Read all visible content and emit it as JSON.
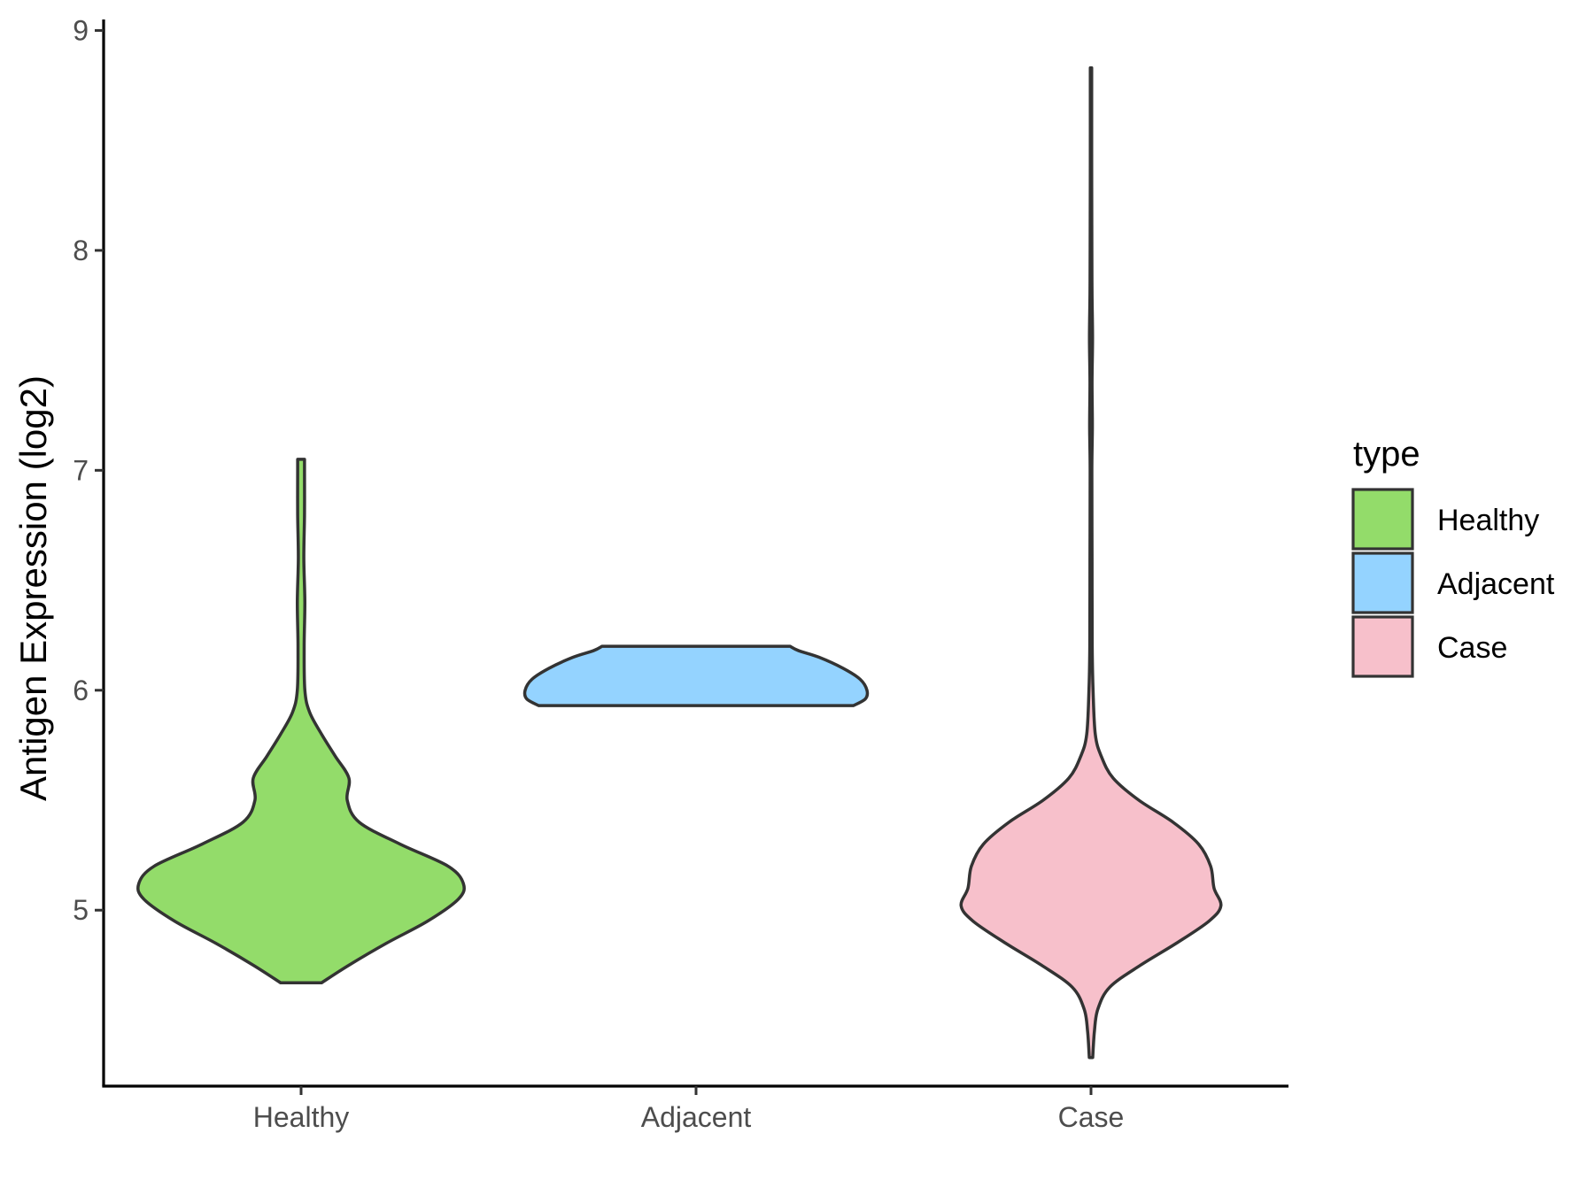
{
  "chart_data": {
    "type": "violin",
    "title": "",
    "xlabel": "",
    "ylabel": "Antigen Expression (log2)",
    "categories": [
      "Healthy",
      "Adjacent",
      "Case"
    ],
    "ylim": [
      4.2,
      9.05
    ],
    "yticks": [
      5,
      6,
      7,
      8,
      9
    ],
    "grid": false,
    "legend": {
      "title": "type",
      "position": "right",
      "entries": [
        "Healthy",
        "Adjacent",
        "Case"
      ]
    },
    "colors": {
      "Healthy": "#93dc6a",
      "Adjacent": "#94d3ff",
      "Case": "#f7c0cb",
      "outline": "#333333",
      "axis": "#000000"
    },
    "series": [
      {
        "name": "Healthy",
        "min": 4.67,
        "max": 7.05,
        "density": [
          [
            4.67,
            0.12
          ],
          [
            4.75,
            0.28
          ],
          [
            4.85,
            0.5
          ],
          [
            4.95,
            0.74
          ],
          [
            5.05,
            0.92
          ],
          [
            5.12,
            0.95
          ],
          [
            5.2,
            0.86
          ],
          [
            5.3,
            0.58
          ],
          [
            5.4,
            0.34
          ],
          [
            5.5,
            0.27
          ],
          [
            5.6,
            0.28
          ],
          [
            5.7,
            0.2
          ],
          [
            5.8,
            0.12
          ],
          [
            5.9,
            0.05
          ],
          [
            6.0,
            0.022
          ],
          [
            6.2,
            0.018
          ],
          [
            6.4,
            0.022
          ],
          [
            6.6,
            0.016
          ],
          [
            6.8,
            0.02
          ],
          [
            7.0,
            0.02
          ],
          [
            7.05,
            0.02
          ]
        ]
      },
      {
        "name": "Adjacent",
        "min": 5.93,
        "max": 6.2,
        "density": [
          [
            5.93,
            0.92
          ],
          [
            5.96,
            0.99
          ],
          [
            6.0,
            1.0
          ],
          [
            6.05,
            0.96
          ],
          [
            6.1,
            0.86
          ],
          [
            6.15,
            0.72
          ],
          [
            6.18,
            0.6
          ],
          [
            6.2,
            0.55
          ]
        ]
      },
      {
        "name": "Case",
        "min": 4.33,
        "max": 8.83,
        "density": [
          [
            4.33,
            0.01
          ],
          [
            4.45,
            0.02
          ],
          [
            4.55,
            0.04
          ],
          [
            4.65,
            0.11
          ],
          [
            4.75,
            0.29
          ],
          [
            4.85,
            0.5
          ],
          [
            4.95,
            0.69
          ],
          [
            5.02,
            0.76
          ],
          [
            5.1,
            0.72
          ],
          [
            5.2,
            0.7
          ],
          [
            5.3,
            0.63
          ],
          [
            5.4,
            0.48
          ],
          [
            5.5,
            0.28
          ],
          [
            5.6,
            0.13
          ],
          [
            5.7,
            0.06
          ],
          [
            5.8,
            0.025
          ],
          [
            6.0,
            0.012
          ],
          [
            6.2,
            0.007
          ],
          [
            6.6,
            0.006
          ],
          [
            7.0,
            0.005
          ],
          [
            7.2,
            0.008
          ],
          [
            7.4,
            0.006
          ],
          [
            7.6,
            0.009
          ],
          [
            7.8,
            0.006
          ],
          [
            8.0,
            0.005
          ],
          [
            8.4,
            0.004
          ],
          [
            8.83,
            0.004
          ]
        ]
      }
    ]
  }
}
